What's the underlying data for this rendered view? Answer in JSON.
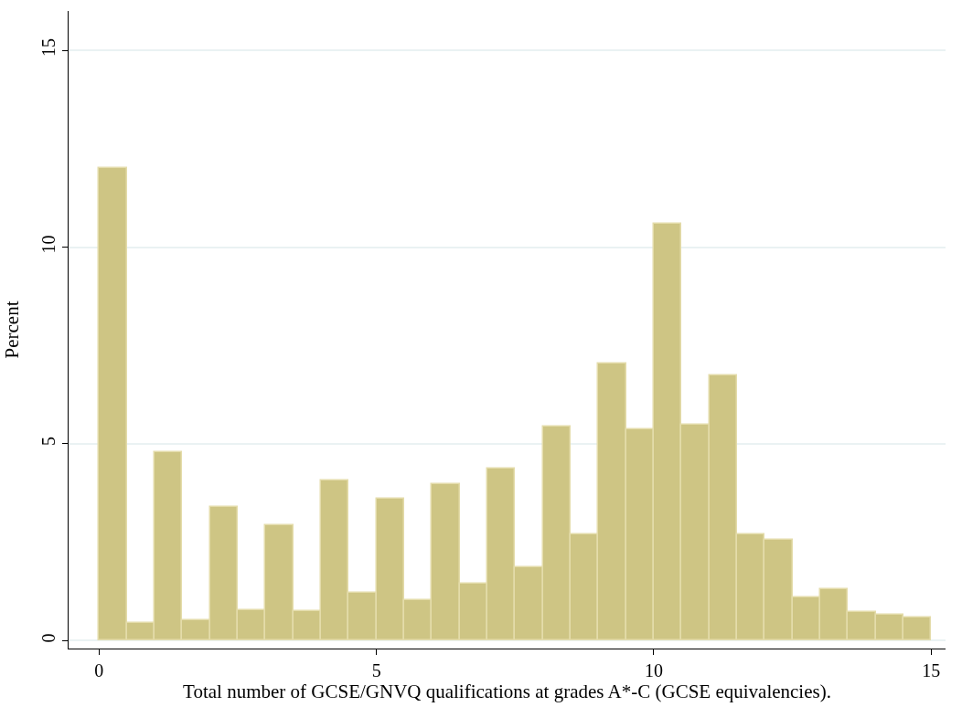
{
  "chart_data": {
    "type": "histogram",
    "xlabel": "Total number of GCSE/GNVQ qualifications at grades A*-C (GCSE equivalencies).",
    "ylabel": "Percent",
    "bins": [
      0,
      0.5,
      1,
      1.5,
      2,
      2.5,
      3,
      3.5,
      4,
      4.5,
      5,
      5.5,
      6,
      6.5,
      7,
      7.5,
      8,
      8.5,
      9,
      9.5,
      10,
      10.5,
      11,
      11.5,
      12,
      12.5,
      13,
      13.5,
      14,
      14.5,
      15
    ],
    "values": [
      12.0,
      0.44,
      4.8,
      0.53,
      3.4,
      0.77,
      2.93,
      0.75,
      4.06,
      1.21,
      3.6,
      1.04,
      3.98,
      1.45,
      4.37,
      1.86,
      5.43,
      2.71,
      7.04,
      5.38,
      10.6,
      5.49,
      6.74,
      2.71,
      2.56,
      1.11,
      1.31,
      0.74,
      0.65,
      0.6
    ],
    "color": "#cec584",
    "xlim": [
      -0.55,
      15.26
    ],
    "xticks": [
      0,
      5,
      10,
      15
    ],
    "ylim": [
      -0.2,
      16
    ],
    "yticks": [
      0,
      5,
      10,
      15
    ],
    "grid": "y"
  }
}
